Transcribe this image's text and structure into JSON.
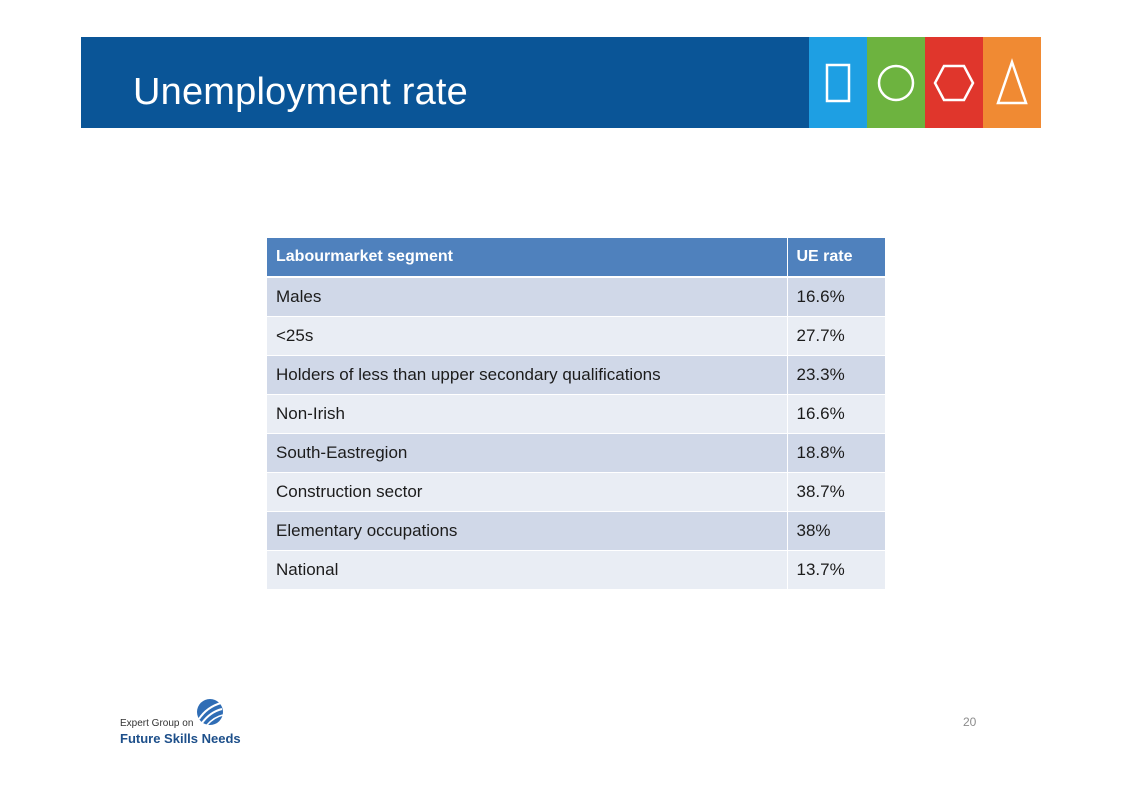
{
  "slide": {
    "title": "Unemployment rate",
    "page_number": "20"
  },
  "decorations": {
    "shapes": [
      {
        "icon": "rectangle-outline-icon",
        "color": "#1e9fe3"
      },
      {
        "icon": "circle-outline-icon",
        "color": "#6db33f"
      },
      {
        "icon": "hexagon-outline-icon",
        "color": "#e0362c"
      },
      {
        "icon": "triangle-outline-icon",
        "color": "#f08a33"
      }
    ]
  },
  "table": {
    "headers": [
      "Labourmarket segment",
      "UE rate"
    ],
    "rows": [
      [
        "Males",
        "16.6%"
      ],
      [
        "<25s",
        "27.7%"
      ],
      [
        "Holders of less than upper secondary qualifications",
        "23.3%"
      ],
      [
        "Non-Irish",
        "16.6%"
      ],
      [
        "South-Eastregion",
        "18.8%"
      ],
      [
        "Construction sector",
        "38.7%"
      ],
      [
        "Elementary occupations",
        "38%"
      ],
      [
        "National",
        "13.7%"
      ]
    ]
  },
  "logo": {
    "line1": "Expert Group on",
    "line2": "Future Skills Needs"
  },
  "colors": {
    "header_bar": "#0a5597",
    "table_header": "#4f81bd",
    "row_odd": "#d0d8e8",
    "row_even": "#e9edf4"
  }
}
